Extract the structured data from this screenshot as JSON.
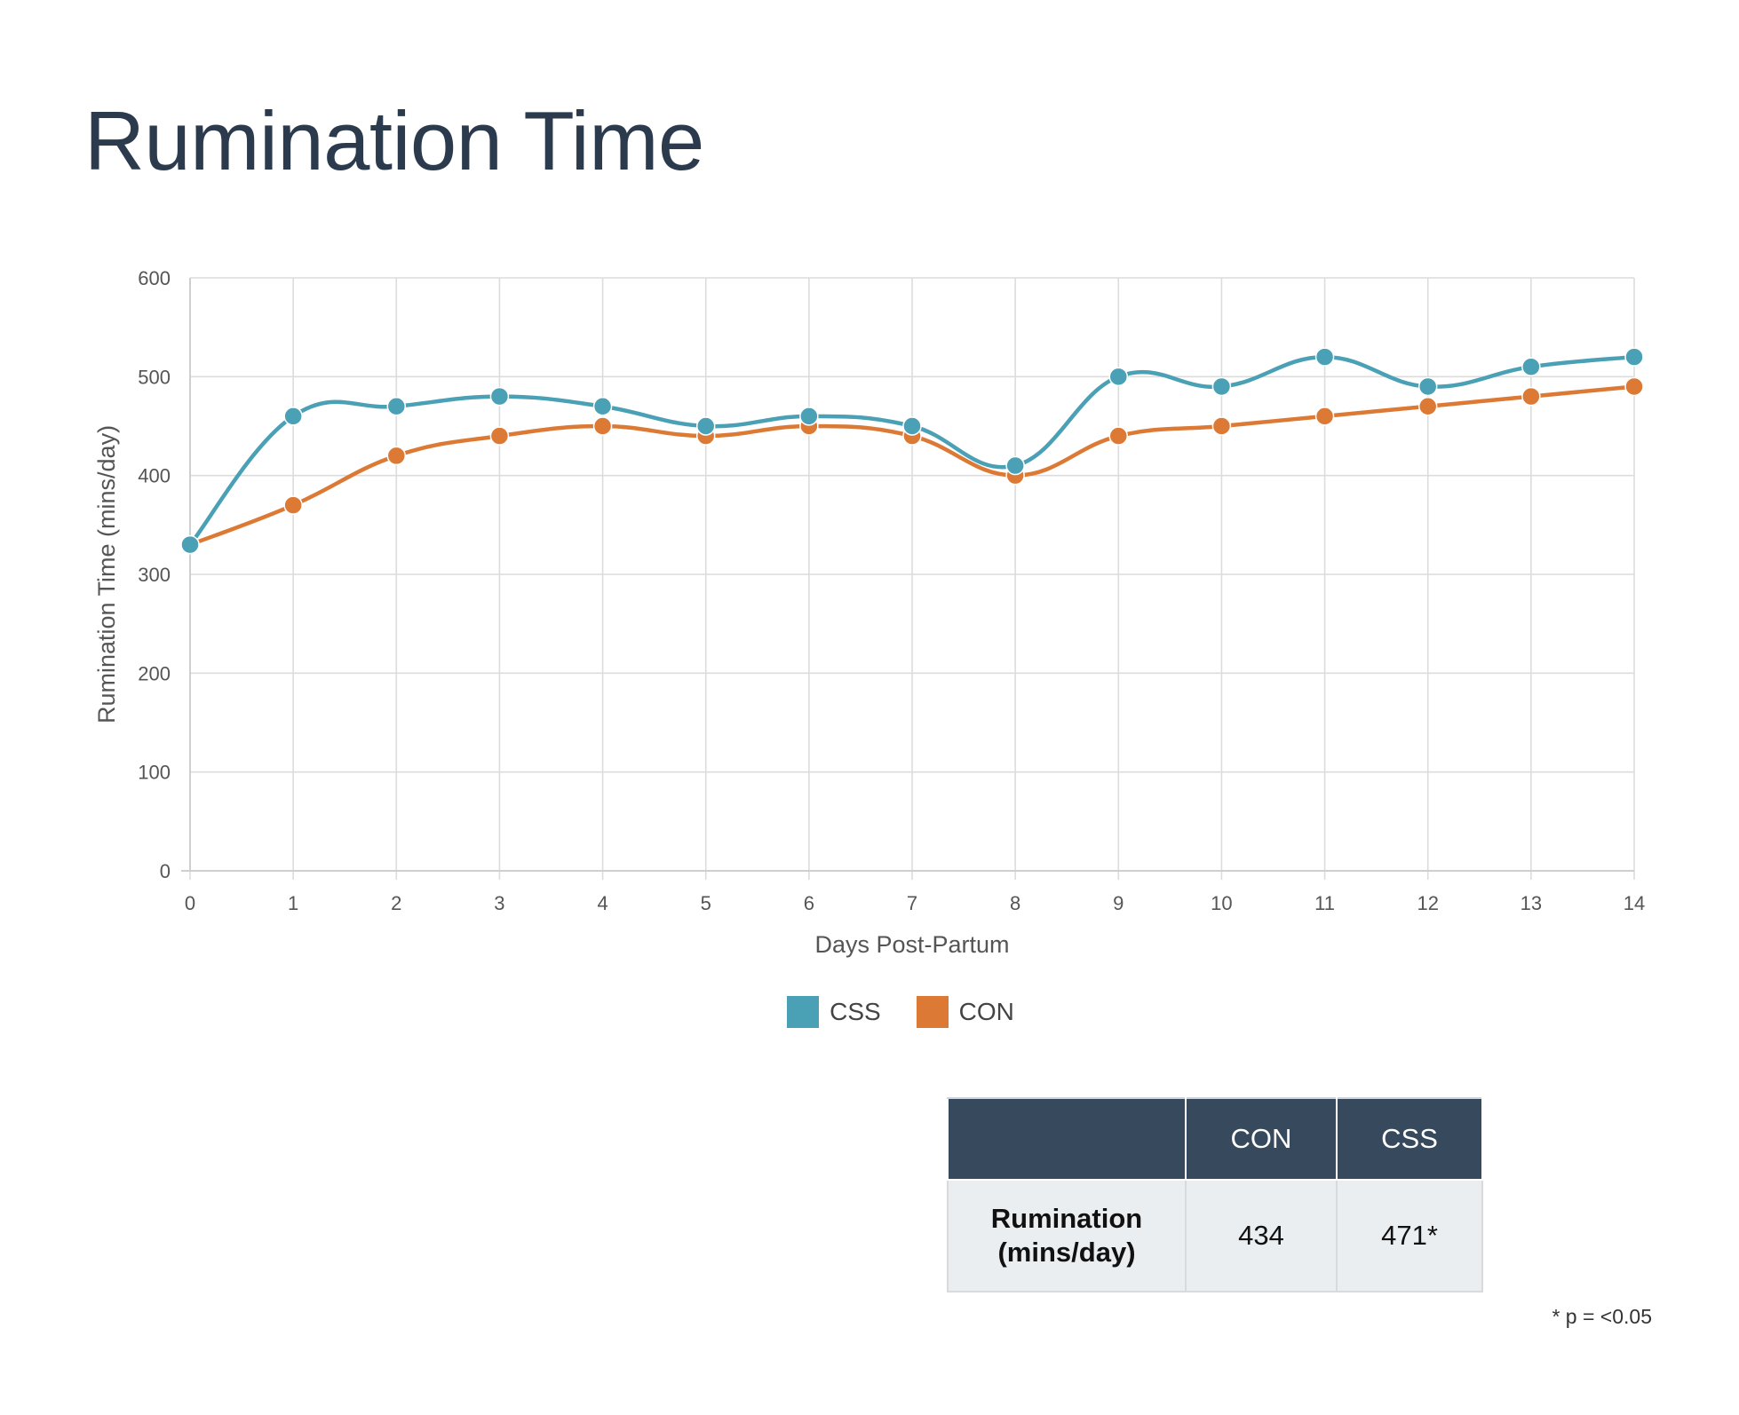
{
  "page": {
    "title": "Rumination Time"
  },
  "chart_data": {
    "type": "line",
    "title": "",
    "xlabel": "Days Post-Partum",
    "ylabel": "Rumination Time (mins/day)",
    "x": [
      0,
      1,
      2,
      3,
      4,
      5,
      6,
      7,
      8,
      9,
      10,
      11,
      12,
      13,
      14
    ],
    "ylim": [
      0,
      600
    ],
    "yticks": [
      0,
      100,
      200,
      300,
      400,
      500,
      600
    ],
    "grid": true,
    "legend_position": "bottom",
    "series": [
      {
        "name": "CSS",
        "color": "#4aa0b5",
        "values": [
          330,
          460,
          470,
          480,
          470,
          450,
          460,
          450,
          410,
          500,
          490,
          520,
          490,
          510,
          520
        ]
      },
      {
        "name": "CON",
        "color": "#dc7a35",
        "values": [
          330,
          370,
          420,
          440,
          450,
          440,
          450,
          440,
          400,
          440,
          450,
          460,
          470,
          480,
          490
        ]
      }
    ]
  },
  "summary_table": {
    "headers": [
      "",
      "CON",
      "CSS"
    ],
    "row": {
      "label_line1": "Rumination",
      "label_line2": "(mins/day)",
      "con": "434",
      "css": "471*"
    }
  },
  "footnote": "* p = <0.05"
}
